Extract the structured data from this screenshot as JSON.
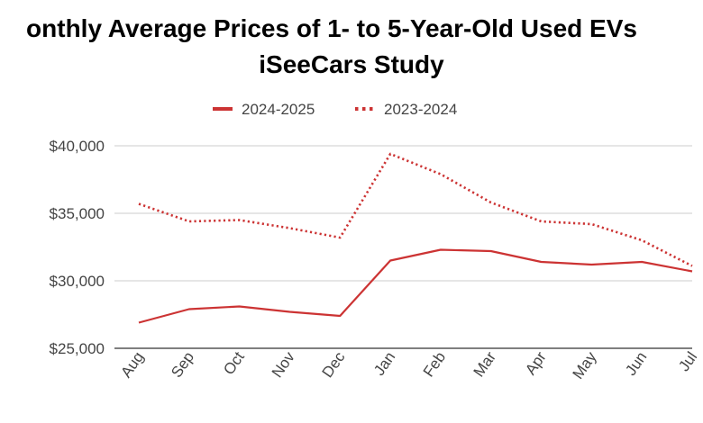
{
  "chart_data": {
    "type": "line",
    "title": [
      "onthly Average Prices of 1- to 5-Year-Old Used EVs",
      "iSeeCars Study"
    ],
    "categories": [
      "Aug",
      "Sep",
      "Oct",
      "Nov",
      "Dec",
      "Jan",
      "Feb",
      "Mar",
      "Apr",
      "May",
      "Jun",
      "Jul"
    ],
    "series": [
      {
        "name": "2024-2025",
        "style": "solid",
        "color": "#cc3333",
        "values": [
          26900,
          27900,
          28100,
          27700,
          27400,
          31500,
          32300,
          32200,
          31400,
          31200,
          31400,
          30700
        ]
      },
      {
        "name": "2023-2024",
        "style": "dotted",
        "color": "#cc3333",
        "values": [
          35700,
          34400,
          34500,
          33900,
          33200,
          39400,
          37900,
          35800,
          34400,
          34200,
          33000,
          31100
        ]
      }
    ],
    "ylim": [
      25000,
      40000
    ],
    "yticks": [
      25000,
      30000,
      35000,
      40000
    ],
    "ytick_labels": [
      "$25,000",
      "$30,000",
      "$35,000",
      "$40,000"
    ],
    "grid": true,
    "legend_position": "top",
    "xlabel": "",
    "ylabel": ""
  }
}
